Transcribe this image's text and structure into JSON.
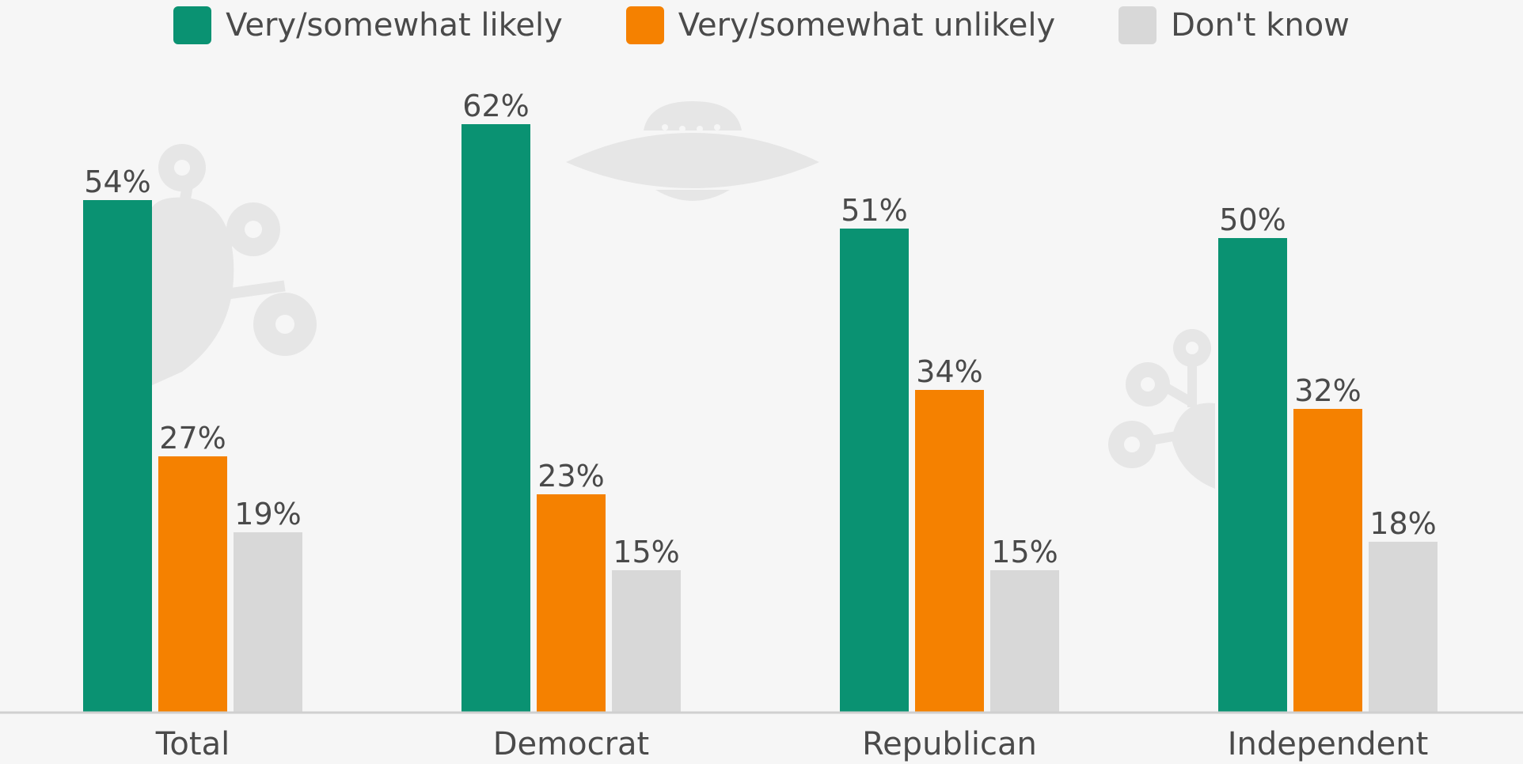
{
  "chart_data": {
    "type": "bar",
    "categories": [
      "Total",
      "Democrat",
      "Republican",
      "Independent"
    ],
    "series": [
      {
        "name": "Very/somewhat likely",
        "values": [
          54,
          62,
          51,
          50
        ],
        "labels": [
          "54%",
          "62%",
          "51%",
          "50%"
        ],
        "color": "#0a9272"
      },
      {
        "name": "Very/somewhat unlikely",
        "values": [
          27,
          23,
          34,
          32
        ],
        "labels": [
          "27%",
          "23%",
          "34%",
          "32%"
        ],
        "color": "#f58100"
      },
      {
        "name": "Don't know",
        "values": [
          19,
          15,
          15,
          18
        ],
        "labels": [
          "19%",
          "15%",
          "15%",
          "18%"
        ],
        "color": "#d8d8d8"
      }
    ],
    "ylim": [
      0,
      100
    ],
    "grid": false,
    "legend_position": "top",
    "decorations": [
      "alien-icon",
      "ufo-icon"
    ]
  }
}
